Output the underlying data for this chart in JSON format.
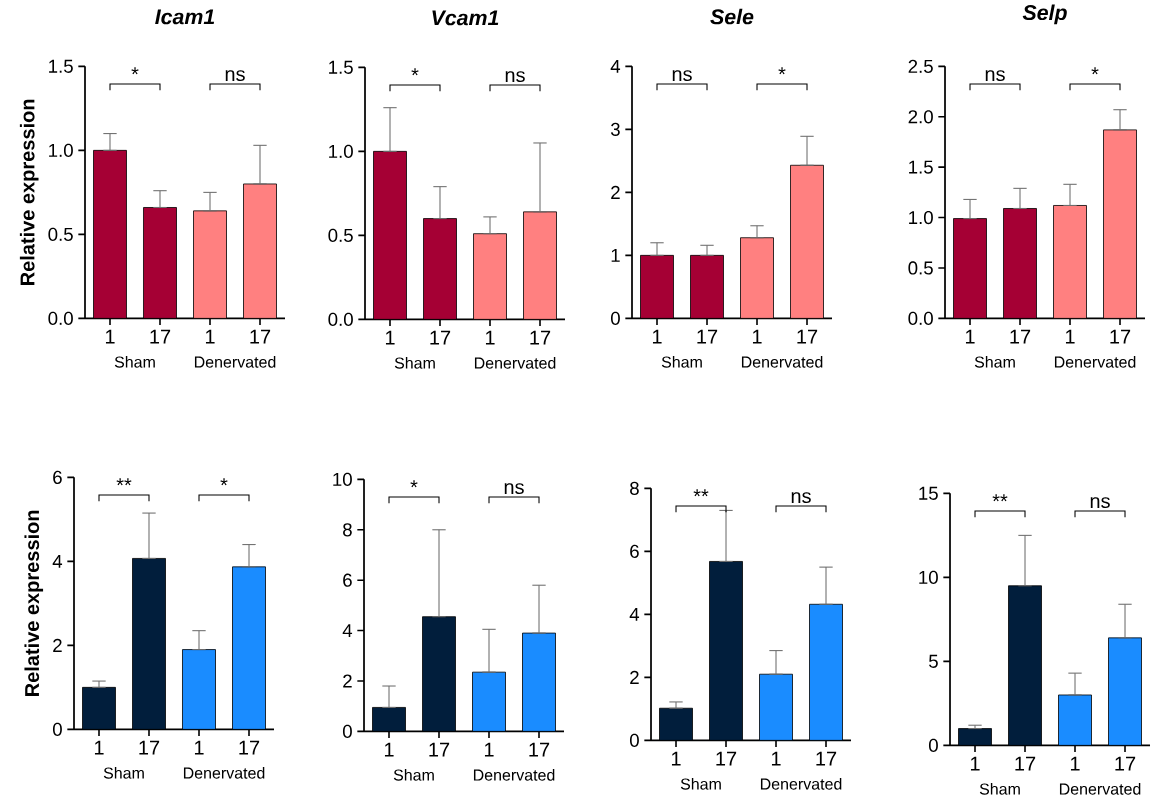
{
  "chart_data": [
    {
      "type": "bar",
      "title": "Icam1",
      "ylabel": "Relative expression",
      "categories": [
        "1",
        "17",
        "1",
        "17"
      ],
      "values": [
        1.0,
        0.66,
        0.64,
        0.8
      ],
      "errors": [
        [
          1.0,
          1.1
        ],
        [
          0.66,
          0.76
        ],
        [
          0.64,
          0.75
        ],
        [
          0.8,
          1.03
        ]
      ],
      "colors": [
        "#a50034",
        "#a50034",
        "#ff8080",
        "#ff8080"
      ],
      "ylim": [
        0,
        1.5
      ],
      "yticks": [
        {
          "value": 0,
          "label": "0.0"
        },
        {
          "value": 0.5,
          "label": "0.5"
        },
        {
          "value": 1,
          "label": "1.0"
        },
        {
          "value": 1.5,
          "label": "1.5"
        }
      ],
      "annotations": [
        "*",
        "ns",
        "Sham",
        "Denervated"
      ]
    },
    {
      "type": "bar",
      "title": "Vcam1",
      "categories": [
        "1",
        "17",
        "1",
        "17"
      ],
      "values": [
        1.0,
        0.6,
        0.51,
        0.64
      ],
      "errors": [
        [
          1.0,
          1.26
        ],
        [
          0.6,
          0.79
        ],
        [
          0.51,
          0.61
        ],
        [
          0.64,
          1.05
        ]
      ],
      "colors": [
        "#a50034",
        "#a50034",
        "#ff8080",
        "#ff8080"
      ],
      "ylim": [
        0,
        1.5
      ],
      "yticks": [
        {
          "value": 0,
          "label": "0.0"
        },
        {
          "value": 0.5,
          "label": "0.5"
        },
        {
          "value": 1,
          "label": "1.0"
        },
        {
          "value": 1.5,
          "label": "1.5"
        }
      ],
      "annotations": [
        "*",
        "ns",
        "Sham",
        "Denervated"
      ]
    },
    {
      "type": "bar",
      "title": "Sele",
      "categories": [
        "1",
        "17",
        "1",
        "17"
      ],
      "values": [
        1.0,
        1.0,
        1.28,
        2.43
      ],
      "errors": [
        [
          1.0,
          1.2
        ],
        [
          1.0,
          1.16
        ],
        [
          1.28,
          1.47
        ],
        [
          2.43,
          2.89
        ]
      ],
      "colors": [
        "#a50034",
        "#a50034",
        "#ff8080",
        "#ff8080"
      ],
      "ylim": [
        0,
        4
      ],
      "yticks": [
        0,
        1,
        2,
        3,
        4
      ],
      "annotations": [
        "ns",
        "*",
        "Sham",
        "Denervated"
      ]
    },
    {
      "type": "bar",
      "title": "Selp",
      "categories": [
        "1",
        "17",
        "1",
        "17"
      ],
      "values": [
        0.99,
        1.09,
        1.12,
        1.87
      ],
      "errors": [
        [
          0.99,
          1.18
        ],
        [
          1.09,
          1.29
        ],
        [
          1.12,
          1.33
        ],
        [
          1.87,
          2.07
        ]
      ],
      "colors": [
        "#a50034",
        "#a50034",
        "#ff8080",
        "#ff8080"
      ],
      "ylim": [
        0,
        2.5
      ],
      "yticks": [
        {
          "value": 0,
          "label": "0.0"
        },
        {
          "value": 0.5,
          "label": "0.5"
        },
        {
          "value": 1,
          "label": "1.0"
        },
        {
          "value": 1.5,
          "label": "1.5"
        },
        {
          "value": 2,
          "label": "2.0"
        },
        {
          "value": 2.5,
          "label": "2.5"
        }
      ],
      "annotations": [
        "ns",
        "*",
        "Sham",
        "Denervated"
      ]
    },
    {
      "type": "bar",
      "ylabel": "Relative expression",
      "categories": [
        "1",
        "17",
        "1",
        "17"
      ],
      "values": [
        1.0,
        4.07,
        1.9,
        3.87
      ],
      "errors": [
        [
          1.0,
          1.15
        ],
        [
          4.07,
          5.15
        ],
        [
          1.9,
          2.35
        ],
        [
          3.87,
          4.4
        ]
      ],
      "colors": [
        "#011e3c",
        "#011e3c",
        "#1a8cff",
        "#1a8cff"
      ],
      "ylim": [
        0,
        6
      ],
      "yticks": [
        0,
        2,
        4,
        6
      ],
      "annotations": [
        "**",
        "*",
        "Sham",
        "Denervated"
      ]
    },
    {
      "type": "bar",
      "categories": [
        "1",
        "17",
        "1",
        "17"
      ],
      "values": [
        0.95,
        4.55,
        2.35,
        3.9
      ],
      "errors": [
        [
          0.95,
          1.8
        ],
        [
          4.55,
          8.0
        ],
        [
          2.35,
          4.05
        ],
        [
          3.9,
          5.8
        ]
      ],
      "colors": [
        "#011e3c",
        "#011e3c",
        "#1a8cff",
        "#1a8cff"
      ],
      "ylim": [
        0,
        10
      ],
      "yticks": [
        0,
        2,
        4,
        6,
        8,
        10
      ],
      "annotations": [
        "*",
        "ns",
        "Sham",
        "Denervated"
      ]
    },
    {
      "type": "bar",
      "categories": [
        "1",
        "17",
        "1",
        "17"
      ],
      "values": [
        1.02,
        5.68,
        2.1,
        4.32
      ],
      "errors": [
        [
          1.02,
          1.22
        ],
        [
          5.68,
          7.3
        ],
        [
          2.1,
          2.85
        ],
        [
          4.32,
          5.5
        ]
      ],
      "colors": [
        "#011e3c",
        "#011e3c",
        "#1a8cff",
        "#1a8cff"
      ],
      "ylim": [
        0,
        8
      ],
      "yticks": [
        0,
        2,
        4,
        6,
        8
      ],
      "annotations": [
        "**",
        "ns",
        "Sham",
        "Denervated"
      ]
    },
    {
      "type": "bar",
      "categories": [
        "1",
        "17",
        "1",
        "17"
      ],
      "values": [
        1.0,
        9.5,
        3.0,
        6.4
      ],
      "errors": [
        [
          1.0,
          1.2
        ],
        [
          9.5,
          12.5
        ],
        [
          3.0,
          4.3
        ],
        [
          6.4,
          8.4
        ]
      ],
      "colors": [
        "#011e3c",
        "#011e3c",
        "#1a8cff",
        "#1a8cff"
      ],
      "ylim": [
        0,
        15
      ],
      "yticks": [
        0,
        5,
        10,
        15
      ],
      "annotations": [
        "**",
        "ns",
        "Sham",
        "Denervated"
      ]
    }
  ]
}
